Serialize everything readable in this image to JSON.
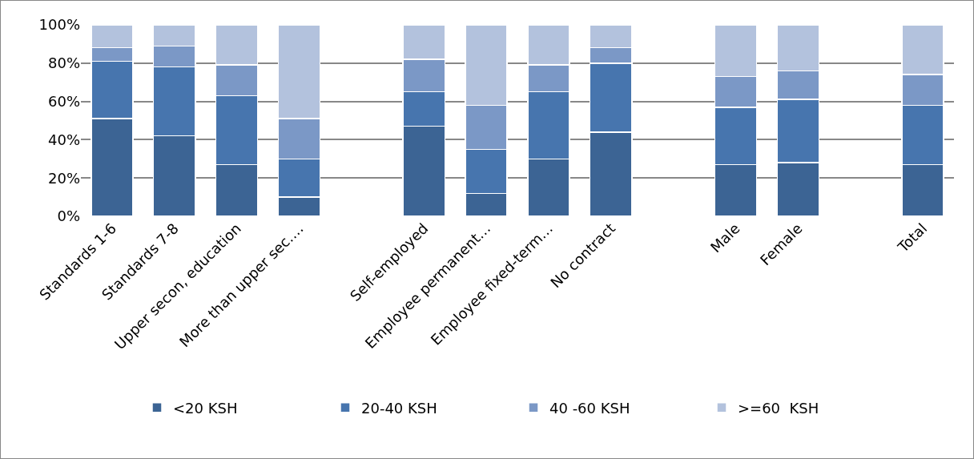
{
  "chart_data": {
    "type": "bar",
    "stacked": true,
    "categories": [
      "Standards 1-6",
      "Standards 7-8",
      "Upper secon, education",
      "More than upper sec….",
      null,
      "Self-employed",
      "Employee permanent…",
      "Employee fixed-term…",
      "No contract",
      null,
      "Male",
      "Female",
      null,
      "Total"
    ],
    "series": [
      {
        "name": "<20 KSH",
        "color": "#3c6494",
        "values": [
          51,
          42,
          27,
          10,
          null,
          47,
          12,
          30,
          44,
          null,
          27,
          28,
          null,
          27
        ]
      },
      {
        "name": "20-40 KSH",
        "color": "#4775ae",
        "values": [
          30,
          36,
          36,
          20,
          null,
          18,
          23,
          35,
          36,
          null,
          30,
          33,
          null,
          31
        ]
      },
      {
        "name": "40 -60 KSH",
        "color": "#7b98c6",
        "values": [
          7,
          11,
          16,
          21,
          null,
          17,
          23,
          14,
          8,
          null,
          16,
          15,
          null,
          16
        ]
      },
      {
        "name": ">=60  KSH",
        "color": "#b3c2dd",
        "values": [
          12,
          11,
          21,
          49,
          null,
          18,
          42,
          21,
          12,
          null,
          27,
          24,
          null,
          26
        ]
      }
    ],
    "ylim": [
      0,
      100
    ],
    "yticks": [
      {
        "value": 0,
        "label": "0%"
      },
      {
        "value": 20,
        "label": "20%"
      },
      {
        "value": 40,
        "label": "40%"
      },
      {
        "value": 60,
        "label": "60%"
      },
      {
        "value": 80,
        "label": "80%"
      },
      {
        "value": 100,
        "label": "100%"
      }
    ],
    "grid": "y",
    "legend": "bottom"
  }
}
